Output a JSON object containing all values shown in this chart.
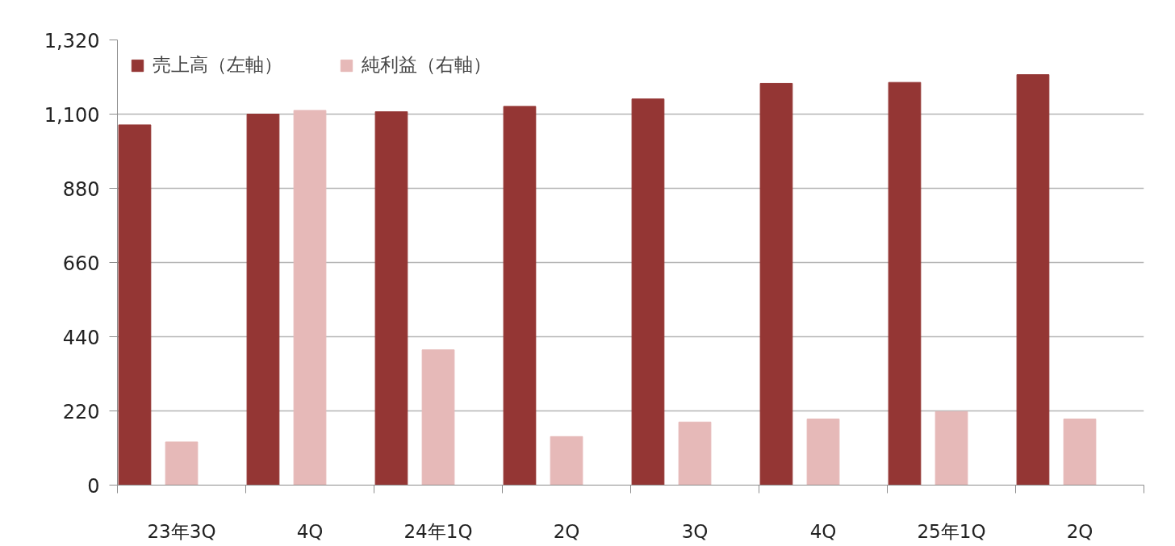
{
  "chart_data": {
    "type": "bar",
    "categories": [
      "23年3Q",
      "4Q",
      "24年1Q",
      "2Q",
      "3Q",
      "4Q",
      "25年1Q",
      "2Q"
    ],
    "series": [
      {
        "name": "売上高（左軸）",
        "color": "#943634",
        "values": [
          1068,
          1100,
          1107,
          1123,
          1145,
          1191,
          1194,
          1217
        ]
      },
      {
        "name": "純利益（右軸）",
        "color": "#e6b9b8",
        "values": [
          128,
          1111,
          401,
          144,
          187,
          196,
          218,
          196
        ]
      }
    ],
    "ylim": [
      0,
      1320
    ],
    "yticks": [
      0,
      220,
      440,
      660,
      880,
      {
        "value": 1100,
        "label": "1,100"
      },
      {
        "value": 1320,
        "label": "1,320"
      }
    ],
    "grid": "y",
    "legend": "top left"
  }
}
